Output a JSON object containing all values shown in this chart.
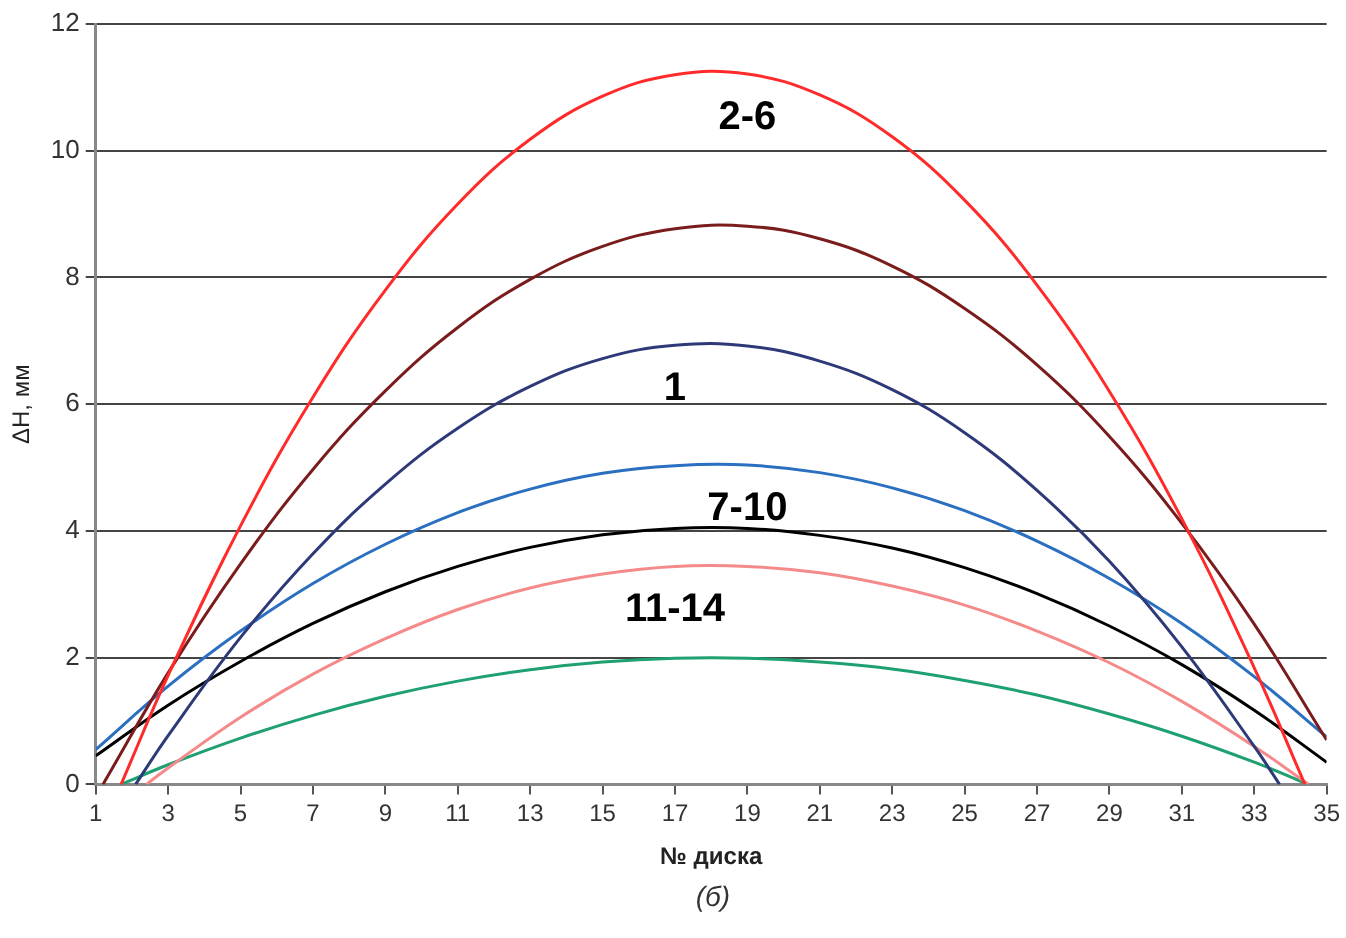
{
  "chart_data": {
    "type": "line",
    "xlabel": "№ диска",
    "ylabel": "ΔH, мм",
    "xlim": [
      1,
      35
    ],
    "xticks": [
      1,
      3,
      5,
      7,
      9,
      11,
      13,
      15,
      17,
      19,
      21,
      23,
      25,
      27,
      29,
      31,
      33,
      35
    ],
    "ylim": [
      0,
      12
    ],
    "yticks": [
      0,
      2,
      4,
      6,
      8,
      10,
      12
    ],
    "grid": "y",
    "legend": false,
    "marker": "none",
    "line_style": "solid",
    "series": [
      {
        "name": "2-6",
        "color": "#ff2a2a",
        "x": [
          1.7,
          3,
          5,
          7,
          9,
          11,
          13,
          15,
          17,
          19,
          21,
          23,
          25,
          27,
          29,
          31,
          33,
          34.4
        ],
        "values": [
          0,
          1.72,
          4.08,
          6.11,
          7.8,
          9.16,
          10.18,
          10.86,
          11.2,
          11.21,
          10.88,
          10.22,
          9.22,
          7.88,
          6.2,
          4.19,
          1.84,
          0
        ]
      },
      {
        "color": "#7b1c1c",
        "x": [
          1.2,
          3,
          5,
          7,
          9,
          11,
          13,
          15,
          17,
          19,
          21,
          23,
          25,
          27,
          29,
          31,
          33,
          35
        ],
        "values": [
          0,
          1.76,
          3.48,
          4.97,
          6.21,
          7.21,
          7.97,
          8.49,
          8.77,
          8.81,
          8.61,
          8.18,
          7.51,
          6.62,
          5.49,
          4.12,
          2.53,
          0.7
        ]
      },
      {
        "name": "1",
        "color": "#2e3a78",
        "x": [
          2.1,
          3,
          5,
          7,
          9,
          11,
          13,
          15,
          17,
          19,
          21,
          23,
          25,
          27,
          29,
          31,
          33,
          33.7
        ],
        "values": [
          0,
          0.77,
          2.32,
          3.64,
          4.74,
          5.62,
          6.28,
          6.72,
          6.93,
          6.92,
          6.68,
          6.23,
          5.55,
          4.64,
          3.52,
          2.17,
          0.6,
          0
        ]
      },
      {
        "name": "7-10",
        "color": "#2a6fc0",
        "x": [
          1,
          3,
          5,
          7,
          9,
          11,
          13,
          15,
          17,
          19,
          21,
          23,
          25,
          27,
          29,
          31,
          33,
          35
        ],
        "values": [
          0.55,
          1.55,
          2.42,
          3.17,
          3.79,
          4.29,
          4.66,
          4.91,
          5.03,
          5.04,
          4.92,
          4.68,
          4.32,
          3.84,
          3.25,
          2.54,
          1.7,
          0.75
        ]
      },
      {
        "color": "#000000",
        "x": [
          1,
          3,
          5,
          7,
          9,
          11,
          13,
          15,
          17,
          19,
          21,
          23,
          25,
          27,
          29,
          31,
          33,
          35
        ],
        "values": [
          0.45,
          1.25,
          1.94,
          2.54,
          3.04,
          3.44,
          3.74,
          3.94,
          4.04,
          4.04,
          3.93,
          3.73,
          3.42,
          3.01,
          2.5,
          1.89,
          1.17,
          0.35
        ]
      },
      {
        "name": "11-14",
        "color": "#f48a8a",
        "x": [
          2.4,
          3,
          5,
          7,
          9,
          11,
          13,
          15,
          17,
          19,
          21,
          23,
          25,
          27,
          29,
          31,
          33,
          34.5
        ],
        "values": [
          0,
          0.26,
          1.06,
          1.74,
          2.3,
          2.76,
          3.1,
          3.32,
          3.44,
          3.44,
          3.34,
          3.13,
          2.83,
          2.42,
          1.92,
          1.31,
          0.6,
          0
        ]
      },
      {
        "color": "#1fa070",
        "x": [
          1.7,
          3,
          5,
          7,
          9,
          11,
          13,
          15,
          17,
          19,
          21,
          23,
          25,
          27,
          29,
          31,
          33,
          34.5
        ],
        "values": [
          0,
          0.31,
          0.73,
          1.09,
          1.39,
          1.63,
          1.81,
          1.93,
          1.99,
          1.99,
          1.93,
          1.82,
          1.64,
          1.41,
          1.11,
          0.76,
          0.35,
          0
        ]
      }
    ],
    "annotations": [
      "(б)"
    ]
  }
}
